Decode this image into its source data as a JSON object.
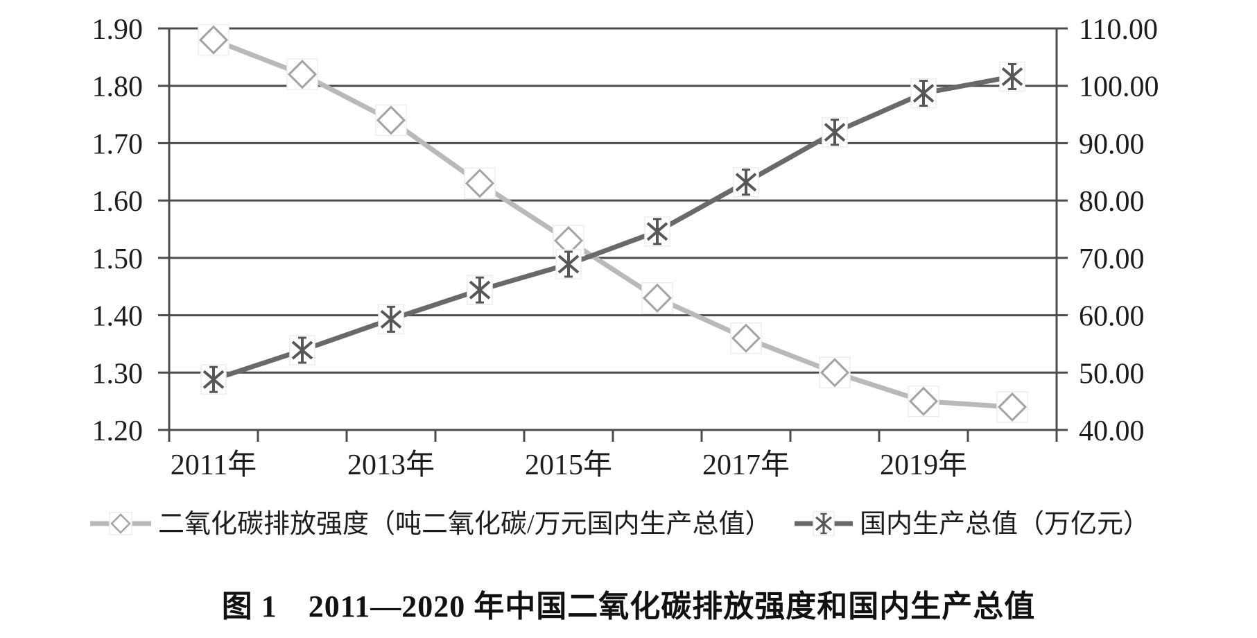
{
  "figure": {
    "caption": "图 1　2011—2020 年中国二氧化碳排放强度和国内生产总值"
  },
  "chart_data": {
    "type": "line",
    "title": "图 1　2011—2020 年中国二氧化碳排放强度和国内生产总值",
    "x_categories": [
      "2011",
      "2012",
      "2013",
      "2014",
      "2015",
      "2016",
      "2017",
      "2018",
      "2019",
      "2020"
    ],
    "x_axis_tick_labels": [
      "2011年",
      "2013年",
      "2015年",
      "2017年",
      "2019年"
    ],
    "x_axis_tick_indices": [
      0,
      2,
      4,
      6,
      8
    ],
    "left_axis": {
      "min": 1.2,
      "max": 1.9,
      "step": 0.1,
      "tick_labels": [
        "1.90",
        "1.80",
        "1.70",
        "1.60",
        "1.50",
        "1.40",
        "1.30",
        "1.20"
      ]
    },
    "right_axis": {
      "min": 40.0,
      "max": 110.0,
      "step": 10.0,
      "tick_labels": [
        "110.00",
        "100.00",
        "90.00",
        "80.00",
        "70.00",
        "60.00",
        "50.00",
        "40.00"
      ]
    },
    "series": [
      {
        "name": "二氧化碳排放强度（吨二氧化碳/万元国内生产总值）",
        "axis": "left",
        "marker": "diamond",
        "line_color": "#b9b9b9",
        "marker_color": "#a3a3a3",
        "values": [
          1.88,
          1.82,
          1.74,
          1.63,
          1.53,
          1.43,
          1.36,
          1.3,
          1.25,
          1.24
        ]
      },
      {
        "name": "国内生产总值（万亿元）",
        "axis": "right",
        "marker": "asterisk",
        "line_color": "#696969",
        "marker_color": "#575757",
        "values": [
          48.8,
          53.9,
          59.3,
          64.4,
          68.9,
          74.6,
          83.2,
          91.9,
          98.7,
          101.6
        ]
      }
    ],
    "grid": true,
    "legend_position": "bottom",
    "axis_color": "#4c4c4c",
    "text_color": "#1c1c1c",
    "background_color": "#ffffff"
  }
}
